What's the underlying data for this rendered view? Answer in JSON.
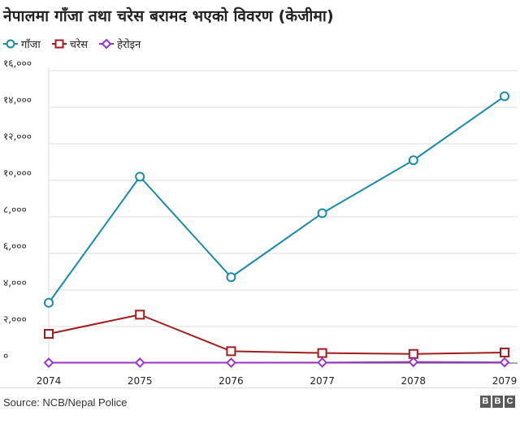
{
  "title": "नेपालमा गाँजा तथा चरेस बरामद भएको विवरण (केजीमा)",
  "colors": {
    "ganja": "#1a8aa6",
    "charas": "#a11d1d",
    "heroin": "#9b33c8",
    "grid": "#dddddd",
    "axis": "#555555"
  },
  "source": "Source: NCB/Nepal Police",
  "logo": [
    "B",
    "B",
    "C"
  ],
  "chart_data": {
    "type": "line",
    "x": [
      "2074",
      "2075",
      "2076",
      "2077",
      "2078",
      "2079"
    ],
    "ylim": [
      0,
      16000
    ],
    "yticks": [
      0,
      2000,
      4000,
      6000,
      8000,
      10000,
      12000,
      14000,
      16000
    ],
    "ytick_labels": [
      "०",
      "२,०००",
      "४,०००",
      "६,०००",
      "८,०००",
      "१०,०००",
      "१२,०००",
      "१४,०००",
      "१६,०००"
    ],
    "grid": true,
    "legend": "top-left",
    "series": [
      {
        "name": "गाँजा",
        "key": "ganja",
        "marker": "circle",
        "values": [
          3300,
          10200,
          4700,
          8200,
          11100,
          14600
        ]
      },
      {
        "name": "चरेस",
        "key": "charas",
        "marker": "square",
        "values": [
          1600,
          2650,
          650,
          550,
          500,
          580
        ]
      },
      {
        "name": "हेरोइन",
        "key": "heroin",
        "marker": "diamond",
        "values": [
          20,
          25,
          20,
          30,
          60,
          40
        ]
      }
    ]
  }
}
